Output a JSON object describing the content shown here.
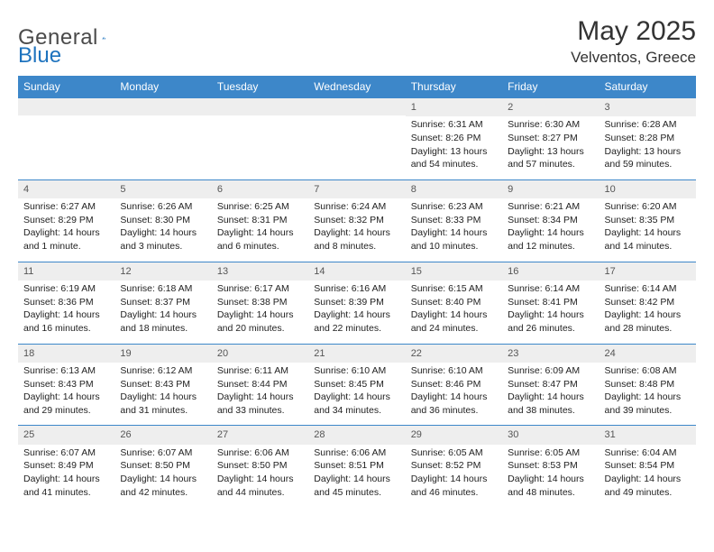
{
  "logo": {
    "word1": "General",
    "word2": "Blue"
  },
  "title": "May 2025",
  "location": "Velventos, Greece",
  "colors": {
    "header_bg": "#3d87c9",
    "header_fg": "#ffffff",
    "row_border": "#3d87c9",
    "daynum_bg": "#eeeeee",
    "logo_blue": "#1e73be"
  },
  "weekdays": [
    "Sunday",
    "Monday",
    "Tuesday",
    "Wednesday",
    "Thursday",
    "Friday",
    "Saturday"
  ],
  "weeks": [
    [
      null,
      null,
      null,
      null,
      {
        "n": "1",
        "sr": "Sunrise: 6:31 AM",
        "ss": "Sunset: 8:26 PM",
        "d1": "Daylight: 13 hours",
        "d2": "and 54 minutes."
      },
      {
        "n": "2",
        "sr": "Sunrise: 6:30 AM",
        "ss": "Sunset: 8:27 PM",
        "d1": "Daylight: 13 hours",
        "d2": "and 57 minutes."
      },
      {
        "n": "3",
        "sr": "Sunrise: 6:28 AM",
        "ss": "Sunset: 8:28 PM",
        "d1": "Daylight: 13 hours",
        "d2": "and 59 minutes."
      }
    ],
    [
      {
        "n": "4",
        "sr": "Sunrise: 6:27 AM",
        "ss": "Sunset: 8:29 PM",
        "d1": "Daylight: 14 hours",
        "d2": "and 1 minute."
      },
      {
        "n": "5",
        "sr": "Sunrise: 6:26 AM",
        "ss": "Sunset: 8:30 PM",
        "d1": "Daylight: 14 hours",
        "d2": "and 3 minutes."
      },
      {
        "n": "6",
        "sr": "Sunrise: 6:25 AM",
        "ss": "Sunset: 8:31 PM",
        "d1": "Daylight: 14 hours",
        "d2": "and 6 minutes."
      },
      {
        "n": "7",
        "sr": "Sunrise: 6:24 AM",
        "ss": "Sunset: 8:32 PM",
        "d1": "Daylight: 14 hours",
        "d2": "and 8 minutes."
      },
      {
        "n": "8",
        "sr": "Sunrise: 6:23 AM",
        "ss": "Sunset: 8:33 PM",
        "d1": "Daylight: 14 hours",
        "d2": "and 10 minutes."
      },
      {
        "n": "9",
        "sr": "Sunrise: 6:21 AM",
        "ss": "Sunset: 8:34 PM",
        "d1": "Daylight: 14 hours",
        "d2": "and 12 minutes."
      },
      {
        "n": "10",
        "sr": "Sunrise: 6:20 AM",
        "ss": "Sunset: 8:35 PM",
        "d1": "Daylight: 14 hours",
        "d2": "and 14 minutes."
      }
    ],
    [
      {
        "n": "11",
        "sr": "Sunrise: 6:19 AM",
        "ss": "Sunset: 8:36 PM",
        "d1": "Daylight: 14 hours",
        "d2": "and 16 minutes."
      },
      {
        "n": "12",
        "sr": "Sunrise: 6:18 AM",
        "ss": "Sunset: 8:37 PM",
        "d1": "Daylight: 14 hours",
        "d2": "and 18 minutes."
      },
      {
        "n": "13",
        "sr": "Sunrise: 6:17 AM",
        "ss": "Sunset: 8:38 PM",
        "d1": "Daylight: 14 hours",
        "d2": "and 20 minutes."
      },
      {
        "n": "14",
        "sr": "Sunrise: 6:16 AM",
        "ss": "Sunset: 8:39 PM",
        "d1": "Daylight: 14 hours",
        "d2": "and 22 minutes."
      },
      {
        "n": "15",
        "sr": "Sunrise: 6:15 AM",
        "ss": "Sunset: 8:40 PM",
        "d1": "Daylight: 14 hours",
        "d2": "and 24 minutes."
      },
      {
        "n": "16",
        "sr": "Sunrise: 6:14 AM",
        "ss": "Sunset: 8:41 PM",
        "d1": "Daylight: 14 hours",
        "d2": "and 26 minutes."
      },
      {
        "n": "17",
        "sr": "Sunrise: 6:14 AM",
        "ss": "Sunset: 8:42 PM",
        "d1": "Daylight: 14 hours",
        "d2": "and 28 minutes."
      }
    ],
    [
      {
        "n": "18",
        "sr": "Sunrise: 6:13 AM",
        "ss": "Sunset: 8:43 PM",
        "d1": "Daylight: 14 hours",
        "d2": "and 29 minutes."
      },
      {
        "n": "19",
        "sr": "Sunrise: 6:12 AM",
        "ss": "Sunset: 8:43 PM",
        "d1": "Daylight: 14 hours",
        "d2": "and 31 minutes."
      },
      {
        "n": "20",
        "sr": "Sunrise: 6:11 AM",
        "ss": "Sunset: 8:44 PM",
        "d1": "Daylight: 14 hours",
        "d2": "and 33 minutes."
      },
      {
        "n": "21",
        "sr": "Sunrise: 6:10 AM",
        "ss": "Sunset: 8:45 PM",
        "d1": "Daylight: 14 hours",
        "d2": "and 34 minutes."
      },
      {
        "n": "22",
        "sr": "Sunrise: 6:10 AM",
        "ss": "Sunset: 8:46 PM",
        "d1": "Daylight: 14 hours",
        "d2": "and 36 minutes."
      },
      {
        "n": "23",
        "sr": "Sunrise: 6:09 AM",
        "ss": "Sunset: 8:47 PM",
        "d1": "Daylight: 14 hours",
        "d2": "and 38 minutes."
      },
      {
        "n": "24",
        "sr": "Sunrise: 6:08 AM",
        "ss": "Sunset: 8:48 PM",
        "d1": "Daylight: 14 hours",
        "d2": "and 39 minutes."
      }
    ],
    [
      {
        "n": "25",
        "sr": "Sunrise: 6:07 AM",
        "ss": "Sunset: 8:49 PM",
        "d1": "Daylight: 14 hours",
        "d2": "and 41 minutes."
      },
      {
        "n": "26",
        "sr": "Sunrise: 6:07 AM",
        "ss": "Sunset: 8:50 PM",
        "d1": "Daylight: 14 hours",
        "d2": "and 42 minutes."
      },
      {
        "n": "27",
        "sr": "Sunrise: 6:06 AM",
        "ss": "Sunset: 8:50 PM",
        "d1": "Daylight: 14 hours",
        "d2": "and 44 minutes."
      },
      {
        "n": "28",
        "sr": "Sunrise: 6:06 AM",
        "ss": "Sunset: 8:51 PM",
        "d1": "Daylight: 14 hours",
        "d2": "and 45 minutes."
      },
      {
        "n": "29",
        "sr": "Sunrise: 6:05 AM",
        "ss": "Sunset: 8:52 PM",
        "d1": "Daylight: 14 hours",
        "d2": "and 46 minutes."
      },
      {
        "n": "30",
        "sr": "Sunrise: 6:05 AM",
        "ss": "Sunset: 8:53 PM",
        "d1": "Daylight: 14 hours",
        "d2": "and 48 minutes."
      },
      {
        "n": "31",
        "sr": "Sunrise: 6:04 AM",
        "ss": "Sunset: 8:54 PM",
        "d1": "Daylight: 14 hours",
        "d2": "and 49 minutes."
      }
    ]
  ]
}
